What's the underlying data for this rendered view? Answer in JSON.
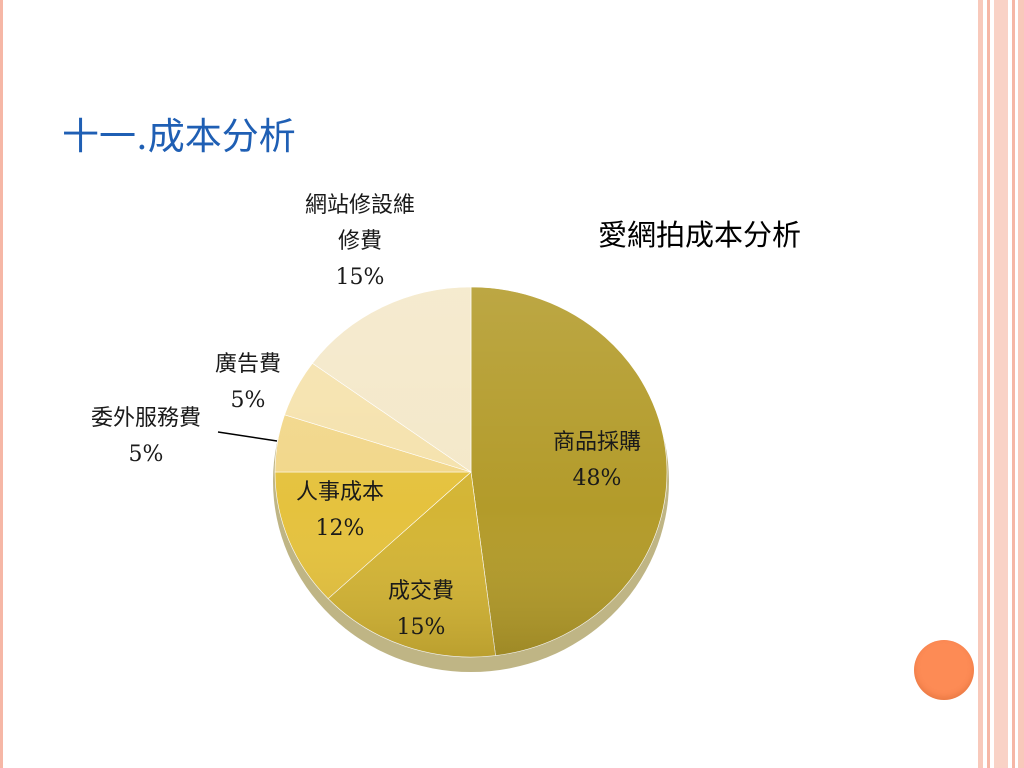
{
  "slide": {
    "title": "十一.成本分析"
  },
  "theme": {
    "accent_orange": "#fd8b55",
    "stripe_color": "#f6b7a6",
    "title_color": "#1f5fb4"
  },
  "chart_data": {
    "type": "pie",
    "title": "愛網拍成本分析",
    "start_angle_deg": 0,
    "direction": "clockwise",
    "slices": [
      {
        "name": "商品採購",
        "value": 48,
        "label_lines": [
          "商品採購",
          "48%"
        ],
        "color": "#b39b2a"
      },
      {
        "name": "成交費",
        "value": 15,
        "label_lines": [
          "成交費",
          "15%"
        ],
        "color": "#d4b535"
      },
      {
        "name": "人事成本",
        "value": 12,
        "label_lines": [
          "人事成本",
          "12%"
        ],
        "color": "#e5c23e"
      },
      {
        "name": "委外服務費",
        "value": 5,
        "label_lines": [
          "委外服務費",
          "5%"
        ],
        "color": "#f2d78a"
      },
      {
        "name": "廣告費",
        "value": 5,
        "label_lines": [
          "廣告費",
          "5%"
        ],
        "color": "#f5e2ad"
      },
      {
        "name": "網站修設維修費",
        "value": 15,
        "label_lines": [
          "網站修設維",
          "修費",
          "15%"
        ],
        "color": "#f4e8c9"
      }
    ]
  }
}
